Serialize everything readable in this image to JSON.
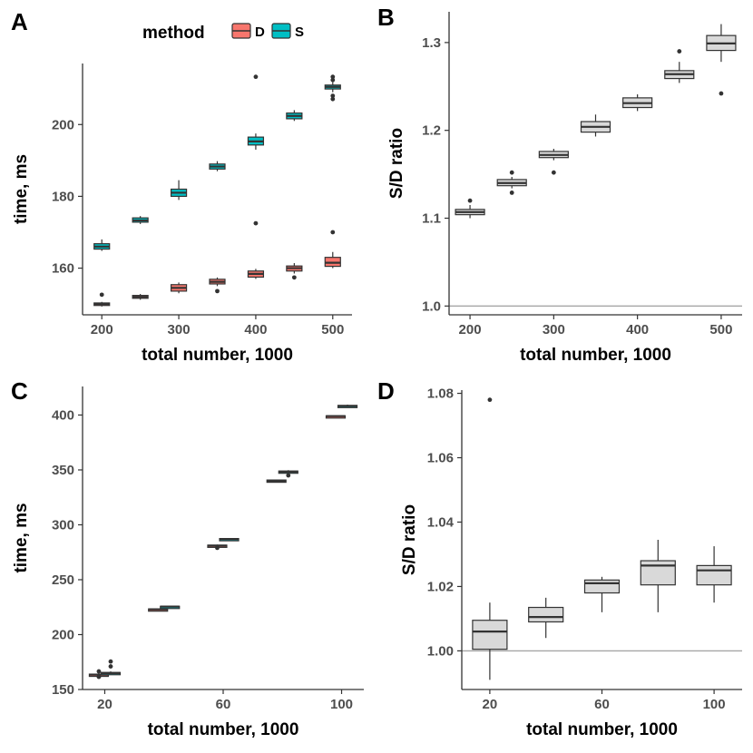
{
  "figure": {
    "panels": [
      {
        "id": "A",
        "label": "A"
      },
      {
        "id": "B",
        "label": "B"
      },
      {
        "id": "C",
        "label": "C"
      },
      {
        "id": "D",
        "label": "D"
      }
    ],
    "legend": {
      "title": "method",
      "entries": [
        {
          "label": "D",
          "color": "#f8766d"
        },
        {
          "label": "S",
          "color": "#00bfc4"
        }
      ]
    }
  },
  "chart_data": [
    {
      "panel": "A",
      "type": "box",
      "xlabel": "total number, 1000",
      "ylabel": "time, ms",
      "xlim": [
        175,
        525
      ],
      "ylim": [
        147,
        217
      ],
      "xticks": [
        200,
        300,
        400,
        500
      ],
      "yticks": [
        160,
        180,
        200
      ],
      "series": [
        {
          "name": "D",
          "color": "#f8766d",
          "boxes": [
            {
              "x": 200,
              "min": 149.3,
              "q1": 149.6,
              "median": 150.0,
              "q3": 150.3,
              "max": 150.6,
              "outliers": [
                152.6
              ]
            },
            {
              "x": 250,
              "min": 151.2,
              "q1": 151.6,
              "median": 152.0,
              "q3": 152.4,
              "max": 152.8,
              "outliers": []
            },
            {
              "x": 300,
              "min": 153.0,
              "q1": 153.6,
              "median": 154.5,
              "q3": 155.4,
              "max": 156.0,
              "outliers": []
            },
            {
              "x": 350,
              "min": 155.0,
              "q1": 155.6,
              "median": 156.2,
              "q3": 156.9,
              "max": 157.4,
              "outliers": [
                153.6
              ]
            },
            {
              "x": 400,
              "min": 157.0,
              "q1": 157.5,
              "median": 158.4,
              "q3": 159.2,
              "max": 159.8,
              "outliers": [
                172.5
              ]
            },
            {
              "x": 450,
              "min": 158.5,
              "q1": 159.2,
              "median": 160.0,
              "q3": 160.6,
              "max": 161.4,
              "outliers": [
                157.4
              ]
            },
            {
              "x": 500,
              "min": 160.0,
              "q1": 160.5,
              "median": 161.5,
              "q3": 163.0,
              "max": 164.5,
              "outliers": [
                170.0
              ]
            }
          ]
        },
        {
          "name": "S",
          "color": "#00bfc4",
          "boxes": [
            {
              "x": 200,
              "min": 164.8,
              "q1": 165.3,
              "median": 166.0,
              "q3": 166.8,
              "max": 168.0,
              "outliers": []
            },
            {
              "x": 250,
              "min": 172.3,
              "q1": 172.8,
              "median": 173.3,
              "q3": 174.0,
              "max": 174.5,
              "outliers": []
            },
            {
              "x": 300,
              "min": 179.0,
              "q1": 180.0,
              "median": 181.0,
              "q3": 182.0,
              "max": 184.5,
              "outliers": []
            },
            {
              "x": 350,
              "min": 187.0,
              "q1": 187.6,
              "median": 188.3,
              "q3": 189.0,
              "max": 189.8,
              "outliers": []
            },
            {
              "x": 400,
              "min": 193.0,
              "q1": 194.3,
              "median": 195.3,
              "q3": 196.5,
              "max": 197.5,
              "outliers": [
                213.3
              ]
            },
            {
              "x": 450,
              "min": 201.0,
              "q1": 201.6,
              "median": 202.4,
              "q3": 203.2,
              "max": 204.0,
              "outliers": []
            },
            {
              "x": 500,
              "min": 209.0,
              "q1": 209.9,
              "median": 210.5,
              "q3": 211.0,
              "max": 211.8,
              "outliers": [
                213.3,
                212.4,
                208.0,
                207.1
              ]
            }
          ]
        }
      ]
    },
    {
      "panel": "B",
      "type": "box",
      "xlabel": "total number, 1000",
      "ylabel": "S/D ratio",
      "xlim": [
        175,
        525
      ],
      "ylim": [
        0.99,
        1.335
      ],
      "xticks": [
        200,
        300,
        400,
        500
      ],
      "yticks": [
        1.0,
        1.1,
        1.2,
        1.3
      ],
      "reference_line": 1.0,
      "series": [
        {
          "name": "ratio",
          "color": "#d9d9d9",
          "boxes": [
            {
              "x": 200,
              "min": 1.1,
              "q1": 1.104,
              "median": 1.107,
              "q3": 1.11,
              "max": 1.115,
              "outliers": [
                1.12
              ]
            },
            {
              "x": 250,
              "min": 1.134,
              "q1": 1.137,
              "median": 1.14,
              "q3": 1.144,
              "max": 1.147,
              "outliers": [
                1.152,
                1.129
              ]
            },
            {
              "x": 300,
              "min": 1.166,
              "q1": 1.169,
              "median": 1.172,
              "q3": 1.176,
              "max": 1.179,
              "outliers": [
                1.152
              ]
            },
            {
              "x": 350,
              "min": 1.193,
              "q1": 1.198,
              "median": 1.204,
              "q3": 1.21,
              "max": 1.218,
              "outliers": []
            },
            {
              "x": 400,
              "min": 1.222,
              "q1": 1.226,
              "median": 1.231,
              "q3": 1.237,
              "max": 1.241,
              "outliers": []
            },
            {
              "x": 450,
              "min": 1.254,
              "q1": 1.259,
              "median": 1.264,
              "q3": 1.268,
              "max": 1.278,
              "outliers": [
                1.29
              ]
            },
            {
              "x": 500,
              "min": 1.278,
              "q1": 1.291,
              "median": 1.299,
              "q3": 1.308,
              "max": 1.321,
              "outliers": [
                1.242
              ]
            }
          ]
        }
      ]
    },
    {
      "panel": "C",
      "type": "box",
      "xlabel": "total number, 1000",
      "ylabel": "time, ms",
      "xlim": [
        12.5,
        107.5
      ],
      "ylim": [
        150,
        426
      ],
      "xticks": [
        20,
        60,
        100
      ],
      "yticks": [
        150,
        200,
        250,
        300,
        350,
        400
      ],
      "series": [
        {
          "name": "D",
          "color": "#f8766d",
          "boxes": [
            {
              "x": 18,
              "min": 162.0,
              "q1": 163.0,
              "median": 163.5,
              "q3": 164.0,
              "max": 165.0,
              "outliers": [
                166.5,
                161.5
              ]
            },
            {
              "x": 38,
              "min": 222.5,
              "q1": 222.8,
              "median": 223.0,
              "q3": 223.4,
              "max": 223.7,
              "outliers": []
            },
            {
              "x": 58,
              "min": 280.0,
              "q1": 280.5,
              "median": 281.0,
              "q3": 281.5,
              "max": 282.0,
              "outliers": [
                279.0
              ]
            },
            {
              "x": 78,
              "min": 338.5,
              "q1": 339.3,
              "median": 340.0,
              "q3": 340.8,
              "max": 341.3,
              "outliers": []
            },
            {
              "x": 98,
              "min": 398.3,
              "q1": 398.6,
              "median": 399.0,
              "q3": 399.3,
              "max": 399.6,
              "outliers": []
            }
          ]
        },
        {
          "name": "S",
          "color": "#00bfc4",
          "boxes": [
            {
              "x": 22,
              "min": 164.0,
              "q1": 164.5,
              "median": 165.0,
              "q3": 165.5,
              "max": 166.5,
              "outliers": [
                175.5,
                171.0
              ]
            },
            {
              "x": 42,
              "min": 225.0,
              "q1": 225.2,
              "median": 225.5,
              "q3": 225.8,
              "max": 226.0,
              "outliers": []
            },
            {
              "x": 62,
              "min": 286.0,
              "q1": 286.5,
              "median": 287.0,
              "q3": 287.5,
              "max": 288.0,
              "outliers": []
            },
            {
              "x": 82,
              "min": 347.0,
              "q1": 347.6,
              "median": 348.3,
              "q3": 349.0,
              "max": 349.8,
              "outliers": [
                345.0
              ]
            },
            {
              "x": 102,
              "min": 407.0,
              "q1": 407.6,
              "median": 408.2,
              "q3": 408.8,
              "max": 409.5,
              "outliers": []
            }
          ]
        }
      ]
    },
    {
      "panel": "D",
      "type": "box",
      "xlabel": "total number, 1000",
      "ylabel": "S/D ratio",
      "xlim": [
        10,
        110
      ],
      "ylim": [
        0.988,
        1.081
      ],
      "xticks": [
        20,
        60,
        100
      ],
      "yticks": [
        1.0,
        1.02,
        1.04,
        1.06,
        1.08
      ],
      "reference_line": 1.0,
      "series": [
        {
          "name": "ratio",
          "color": "#d9d9d9",
          "boxes": [
            {
              "x": 20,
              "min": 0.991,
              "q1": 1.0005,
              "median": 1.006,
              "q3": 1.0095,
              "max": 1.015,
              "outliers": [
                1.078
              ]
            },
            {
              "x": 40,
              "min": 1.004,
              "q1": 1.009,
              "median": 1.0105,
              "q3": 1.0135,
              "max": 1.0165,
              "outliers": []
            },
            {
              "x": 60,
              "min": 1.012,
              "q1": 1.018,
              "median": 1.021,
              "q3": 1.022,
              "max": 1.023,
              "outliers": []
            },
            {
              "x": 80,
              "min": 1.012,
              "q1": 1.0205,
              "median": 1.0265,
              "q3": 1.028,
              "max": 1.0345,
              "outliers": []
            },
            {
              "x": 100,
              "min": 1.015,
              "q1": 1.0205,
              "median": 1.025,
              "q3": 1.0265,
              "max": 1.0325,
              "outliers": []
            }
          ]
        }
      ]
    }
  ]
}
